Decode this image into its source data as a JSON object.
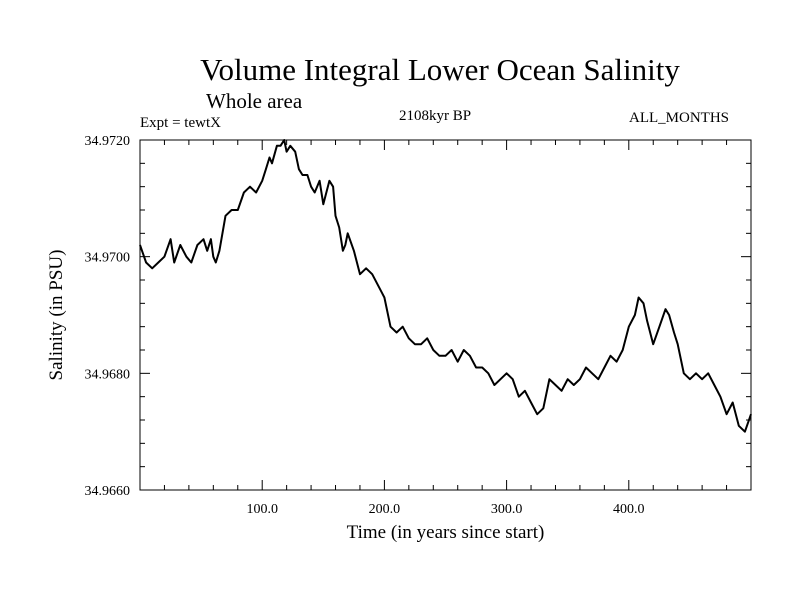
{
  "chart_data": {
    "type": "line",
    "title": "Volume Integral Lower Ocean Salinity",
    "subtitle": "Whole area",
    "annotations": {
      "left": "Expt = tewtX",
      "center": "2108kyr BP",
      "right": "ALL_MONTHS"
    },
    "xlabel": "Time (in years since start)",
    "ylabel": "Salinity (in PSU)",
    "xlim": [
      0,
      500
    ],
    "ylim": [
      34.966,
      34.972
    ],
    "xticks": [
      100,
      200,
      300,
      400
    ],
    "xtick_labels": [
      "100.0",
      "200.0",
      "300.0",
      "400.0"
    ],
    "yticks": [
      34.966,
      34.968,
      34.97,
      34.972
    ],
    "ytick_labels": [
      "34.9660",
      "34.9680",
      "34.9700",
      "34.9720"
    ],
    "grid": false,
    "series": [
      {
        "name": "Salinity",
        "x": [
          0,
          5,
          10,
          15,
          20,
          25,
          28,
          33,
          38,
          42,
          47,
          52,
          55,
          58,
          60,
          62,
          65,
          70,
          75,
          80,
          85,
          90,
          95,
          100,
          103,
          106,
          108,
          112,
          115,
          118,
          120,
          123,
          127,
          130,
          133,
          137,
          140,
          143,
          147,
          150,
          155,
          158,
          160,
          163,
          166,
          168,
          170,
          175,
          180,
          185,
          190,
          195,
          200,
          205,
          210,
          215,
          220,
          225,
          230,
          235,
          240,
          245,
          250,
          255,
          260,
          265,
          270,
          275,
          280,
          285,
          290,
          295,
          300,
          305,
          310,
          315,
          320,
          325,
          330,
          335,
          340,
          345,
          350,
          355,
          360,
          365,
          370,
          375,
          380,
          385,
          390,
          395,
          400,
          405,
          408,
          412,
          415,
          420,
          425,
          430,
          433,
          437,
          440,
          445,
          450,
          455,
          460,
          465,
          470,
          475,
          480,
          485,
          490,
          495,
          500
        ],
        "values": [
          34.9702,
          34.9699,
          34.9698,
          34.9699,
          34.97,
          34.9703,
          34.9699,
          34.9702,
          34.97,
          34.9699,
          34.9702,
          34.9703,
          34.9701,
          34.9703,
          34.97,
          34.9699,
          34.9701,
          34.9707,
          34.9708,
          34.9708,
          34.9711,
          34.9712,
          34.9711,
          34.9713,
          34.9715,
          34.9717,
          34.9716,
          34.9719,
          34.9719,
          34.972,
          34.9718,
          34.9719,
          34.9718,
          34.9715,
          34.9714,
          34.9714,
          34.9712,
          34.9711,
          34.9713,
          34.9709,
          34.9713,
          34.9712,
          34.9707,
          34.9705,
          34.9701,
          34.9702,
          34.9704,
          34.9701,
          34.9697,
          34.9698,
          34.9697,
          34.9695,
          34.9693,
          34.9688,
          34.9687,
          34.9688,
          34.9686,
          34.9685,
          34.9685,
          34.9686,
          34.9684,
          34.9683,
          34.9683,
          34.9684,
          34.9682,
          34.9684,
          34.9683,
          34.9681,
          34.9681,
          34.968,
          34.9678,
          34.9679,
          34.968,
          34.9679,
          34.9676,
          34.9677,
          34.9675,
          34.9673,
          34.9674,
          34.9679,
          34.9678,
          34.9677,
          34.9679,
          34.9678,
          34.9679,
          34.9681,
          34.968,
          34.9679,
          34.9681,
          34.9683,
          34.9682,
          34.9684,
          34.9688,
          34.969,
          34.9693,
          34.9692,
          34.9689,
          34.9685,
          34.9688,
          34.9691,
          34.969,
          34.9687,
          34.9685,
          34.968,
          34.9679,
          34.968,
          34.9679,
          34.968,
          34.9678,
          34.9676,
          34.9673,
          34.9675,
          34.9671,
          34.967,
          34.9673
        ]
      }
    ]
  },
  "colors": {
    "background": "#ffffff",
    "line": "#000000",
    "axes": "#000000"
  }
}
